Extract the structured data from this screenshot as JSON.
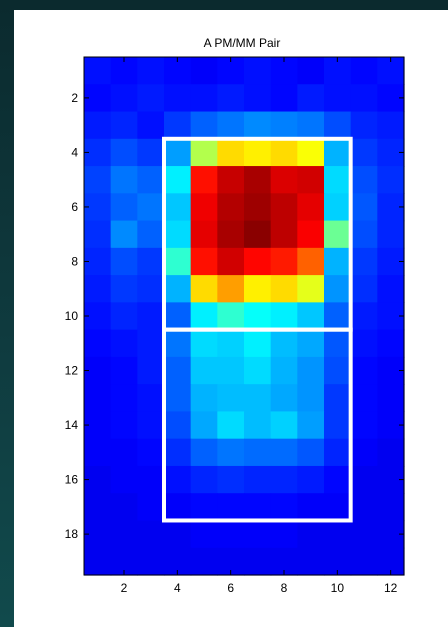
{
  "chart_data": {
    "type": "heatmap",
    "title": "A PM/MM Pair",
    "xlabel": "",
    "ylabel": "",
    "colormap": "jet",
    "clim": [
      0,
      1
    ],
    "x_range": [
      0.5,
      12.5
    ],
    "y_range": [
      0.5,
      19.5
    ],
    "x_ticks": [
      2,
      4,
      6,
      8,
      10,
      12
    ],
    "y_ticks": [
      2,
      4,
      6,
      8,
      10,
      12,
      14,
      16,
      18
    ],
    "x_tick_labels": [
      "2",
      "4",
      "6",
      "8",
      "10",
      "12"
    ],
    "y_tick_labels": [
      "2",
      "4",
      "6",
      "8",
      "10",
      "12",
      "14",
      "16",
      "18"
    ],
    "grid": false,
    "legend": "none",
    "values": [
      [
        0.14,
        0.13,
        0.14,
        0.13,
        0.12,
        0.13,
        0.14,
        0.13,
        0.12,
        0.14,
        0.13,
        0.14
      ],
      [
        0.13,
        0.14,
        0.15,
        0.14,
        0.14,
        0.15,
        0.14,
        0.13,
        0.15,
        0.14,
        0.14,
        0.13
      ],
      [
        0.15,
        0.16,
        0.14,
        0.18,
        0.22,
        0.24,
        0.26,
        0.25,
        0.24,
        0.2,
        0.16,
        0.15
      ],
      [
        0.17,
        0.2,
        0.18,
        0.28,
        0.55,
        0.66,
        0.64,
        0.66,
        0.62,
        0.3,
        0.18,
        0.16
      ],
      [
        0.19,
        0.24,
        0.22,
        0.36,
        0.86,
        0.93,
        0.96,
        0.91,
        0.92,
        0.34,
        0.2,
        0.17
      ],
      [
        0.18,
        0.22,
        0.24,
        0.32,
        0.89,
        0.95,
        0.97,
        0.94,
        0.9,
        0.33,
        0.21,
        0.16
      ],
      [
        0.17,
        0.26,
        0.22,
        0.34,
        0.9,
        0.96,
        0.99,
        0.94,
        0.88,
        0.48,
        0.2,
        0.16
      ],
      [
        0.16,
        0.2,
        0.18,
        0.42,
        0.86,
        0.92,
        0.87,
        0.85,
        0.78,
        0.3,
        0.18,
        0.15
      ],
      [
        0.15,
        0.18,
        0.17,
        0.3,
        0.66,
        0.72,
        0.64,
        0.66,
        0.6,
        0.27,
        0.17,
        0.14
      ],
      [
        0.14,
        0.16,
        0.15,
        0.22,
        0.36,
        0.42,
        0.38,
        0.36,
        0.32,
        0.22,
        0.15,
        0.14
      ],
      [
        0.13,
        0.14,
        0.15,
        0.24,
        0.34,
        0.33,
        0.36,
        0.31,
        0.29,
        0.21,
        0.14,
        0.13
      ],
      [
        0.12,
        0.13,
        0.15,
        0.22,
        0.32,
        0.32,
        0.34,
        0.3,
        0.27,
        0.2,
        0.13,
        0.12
      ],
      [
        0.12,
        0.13,
        0.14,
        0.22,
        0.3,
        0.31,
        0.31,
        0.29,
        0.27,
        0.18,
        0.13,
        0.12
      ],
      [
        0.12,
        0.13,
        0.14,
        0.2,
        0.29,
        0.34,
        0.31,
        0.33,
        0.28,
        0.18,
        0.13,
        0.12
      ],
      [
        0.12,
        0.12,
        0.13,
        0.17,
        0.22,
        0.24,
        0.23,
        0.23,
        0.21,
        0.16,
        0.12,
        0.11
      ],
      [
        0.11,
        0.12,
        0.12,
        0.14,
        0.16,
        0.17,
        0.16,
        0.16,
        0.15,
        0.13,
        0.11,
        0.11
      ],
      [
        0.11,
        0.11,
        0.12,
        0.12,
        0.13,
        0.13,
        0.13,
        0.13,
        0.12,
        0.12,
        0.11,
        0.11
      ],
      [
        0.11,
        0.11,
        0.11,
        0.11,
        0.12,
        0.12,
        0.12,
        0.12,
        0.11,
        0.11,
        0.11,
        0.11
      ],
      [
        0.11,
        0.11,
        0.11,
        0.11,
        0.11,
        0.11,
        0.11,
        0.11,
        0.11,
        0.11,
        0.11,
        0.11
      ]
    ],
    "overlay_boxes": [
      {
        "x": [
          3.5,
          10.5
        ],
        "y": [
          3.5,
          10.5
        ],
        "color": "#ffffff"
      },
      {
        "x": [
          3.5,
          10.5
        ],
        "y": [
          10.5,
          17.5
        ],
        "color": "#ffffff"
      }
    ]
  }
}
